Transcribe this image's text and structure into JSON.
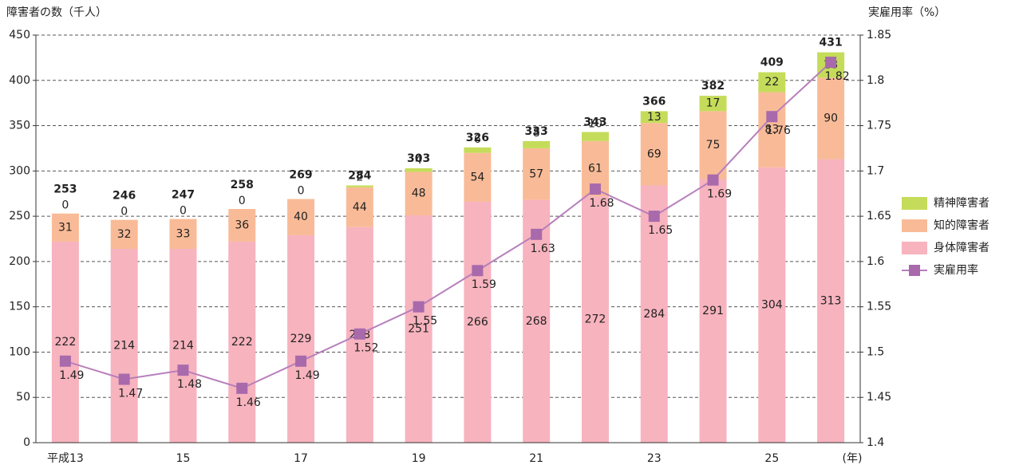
{
  "chart_data": {
    "type": "stacked-bar-line",
    "y_label": "障害者の数（千人）",
    "y2_label": "実雇用率（%）",
    "x_label": "(年)",
    "categories": [
      "平成13",
      null,
      "15",
      null,
      "17",
      null,
      "19",
      null,
      "21",
      null,
      "23",
      null,
      "25",
      null
    ],
    "series": [
      {
        "name": "身体障害者",
        "color": "#f7b3be",
        "values": [
          222,
          214,
          214,
          222,
          229,
          238,
          251,
          266,
          268,
          272,
          284,
          291,
          304,
          313
        ]
      },
      {
        "name": "知的障害者",
        "color": "#f9bb97",
        "values": [
          31,
          32,
          33,
          36,
          40,
          44,
          48,
          54,
          57,
          61,
          69,
          75,
          83,
          90
        ]
      },
      {
        "name": "精神障害者",
        "color": "#c5dc5a",
        "values": [
          0,
          0,
          0,
          0,
          0,
          2,
          4,
          6,
          8,
          10,
          13,
          17,
          22,
          28
        ]
      },
      {
        "name": "実雇用率",
        "color": "#b77fbb",
        "axis": "y2",
        "values": [
          1.49,
          1.47,
          1.48,
          1.46,
          1.49,
          1.52,
          1.55,
          1.59,
          1.63,
          1.68,
          1.65,
          1.69,
          1.76,
          1.82
        ]
      }
    ],
    "totals": [
      253,
      246,
      247,
      258,
      269,
      284,
      303,
      326,
      333,
      343,
      366,
      382,
      409,
      431
    ],
    "ylim": [
      0,
      450
    ],
    "yticks": [
      0,
      50,
      100,
      150,
      200,
      250,
      300,
      350,
      400,
      450
    ],
    "y2lim": [
      1.4,
      1.85
    ],
    "y2ticks": [
      1.4,
      1.45,
      1.5,
      1.55,
      1.6,
      1.65,
      1.7,
      1.75,
      1.8,
      1.85
    ],
    "grid": true,
    "legend": "right"
  }
}
